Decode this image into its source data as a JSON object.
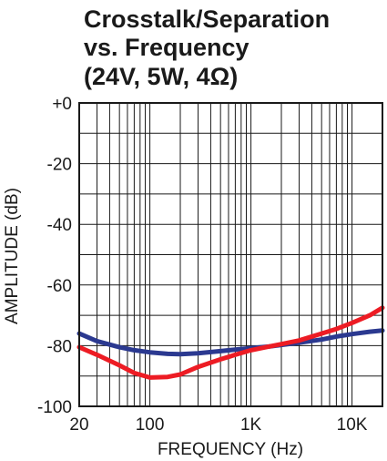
{
  "chart_data": {
    "type": "line",
    "title_lines": [
      "Crosstalk/Separation",
      "vs. Frequency",
      "(24V, 5W, 4Ω)"
    ],
    "xlabel": "FREQUENCY (Hz)",
    "ylabel": "AMPLITUDE (dB)",
    "x_scale": "log",
    "xlim": [
      20,
      20000
    ],
    "ylim": [
      -100,
      0
    ],
    "x_ticks": [
      {
        "value": 20,
        "label": "20"
      },
      {
        "value": 100,
        "label": "100"
      },
      {
        "value": 1000,
        "label": "1K"
      },
      {
        "value": 10000,
        "label": "10K"
      }
    ],
    "y_ticks": [
      {
        "value": 0,
        "label": "+0"
      },
      {
        "value": -20,
        "label": "-20"
      },
      {
        "value": -40,
        "label": "-40"
      },
      {
        "value": -60,
        "label": "-60"
      },
      {
        "value": -80,
        "label": "-80"
      },
      {
        "value": -100,
        "label": "-100"
      }
    ],
    "grid": true,
    "series": [
      {
        "color": "#2b3990",
        "x": [
          20,
          30,
          50,
          70,
          100,
          150,
          200,
          300,
          500,
          700,
          1000,
          1500,
          2000,
          3000,
          5000,
          7000,
          10000,
          15000,
          20000
        ],
        "y": [
          -76,
          -78.5,
          -80.5,
          -81.5,
          -82.2,
          -82.7,
          -82.8,
          -82.5,
          -81.8,
          -81.3,
          -80.8,
          -80.3,
          -79.8,
          -79,
          -78,
          -77,
          -76.2,
          -75.4,
          -75
        ]
      },
      {
        "color": "#ed1c24",
        "x": [
          20,
          30,
          50,
          70,
          100,
          150,
          200,
          300,
          500,
          700,
          1000,
          1500,
          2000,
          3000,
          5000,
          7000,
          10000,
          15000,
          20000
        ],
        "y": [
          -80.5,
          -83,
          -86.5,
          -89,
          -90.5,
          -90.3,
          -89.5,
          -87,
          -84.5,
          -83,
          -81.5,
          -80.3,
          -79.5,
          -78.3,
          -76,
          -74.5,
          -72.5,
          -70,
          -67.5
        ]
      }
    ]
  }
}
